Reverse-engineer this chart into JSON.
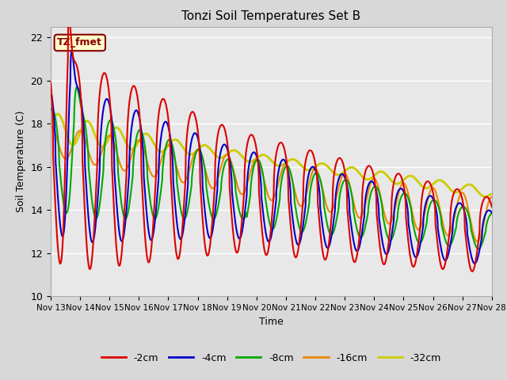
{
  "title": "Tonzi Soil Temperatures Set B",
  "xlabel": "Time",
  "ylabel": "Soil Temperature (C)",
  "ylim": [
    10,
    22.5
  ],
  "xlim": [
    0,
    360
  ],
  "annotation": "TZ_fmet",
  "annotation_box_color": "#ffffcc",
  "annotation_border_color": "#880000",
  "annotation_text_color": "#880000",
  "background_color": "#e8e8e8",
  "plot_bg_color": "#e8e8e8",
  "outer_bg_color": "#d8d8d8",
  "grid_color": "white",
  "series": [
    {
      "label": "-2cm",
      "color": "#dd0000",
      "lw": 1.5
    },
    {
      "label": "-4cm",
      "color": "#0000cc",
      "lw": 1.5
    },
    {
      "label": "-8cm",
      "color": "#00aa00",
      "lw": 1.5
    },
    {
      "label": "-16cm",
      "color": "#ee8800",
      "lw": 1.5
    },
    {
      "label": "-32cm",
      "color": "#cccc00",
      "lw": 2.0
    }
  ],
  "xtick_labels": [
    "Nov 13",
    "Nov 14",
    "Nov 15",
    "Nov 16",
    "Nov 17",
    "Nov 18",
    "Nov 19",
    "Nov 20",
    "Nov 21",
    "Nov 22",
    "Nov 23",
    "Nov 24",
    "Nov 25",
    "Nov 26",
    "Nov 27",
    "Nov 28"
  ],
  "xtick_positions": [
    0,
    24,
    48,
    72,
    96,
    120,
    144,
    168,
    192,
    216,
    240,
    264,
    288,
    312,
    336,
    360
  ],
  "ytick_positions": [
    10,
    12,
    14,
    16,
    18,
    20,
    22
  ],
  "n_points": 1441
}
